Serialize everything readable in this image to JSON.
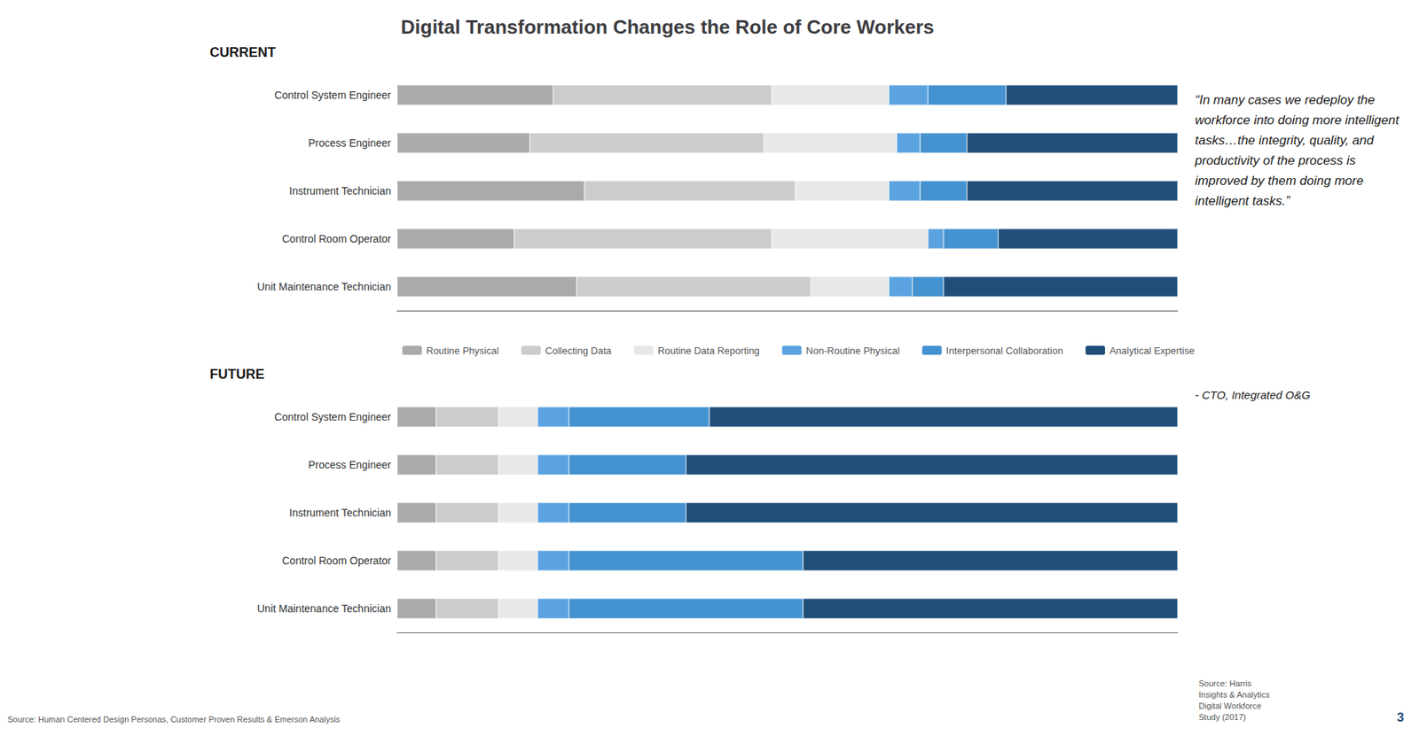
{
  "title": "Digital Transformation Changes the Role of Core Workers",
  "chart_data": [
    {
      "type": "bar",
      "title": "CURRENT",
      "orientation": "horizontal",
      "stacked": true,
      "grid": false,
      "tick_labels": "y",
      "legend": "bottom",
      "xlim": [
        0,
        100
      ],
      "categories": [
        "Control System Engineer",
        "Process Engineer",
        "Instrument Technician",
        "Control Room Operator",
        "Unit Maintenance Technician"
      ],
      "series": [
        {
          "name": "Routine Physical",
          "color": "#AAAAAA",
          "values": [
            20,
            17,
            24,
            15,
            23
          ]
        },
        {
          "name": "Collecting Data",
          "color": "#CCCCCC",
          "values": [
            28,
            30,
            27,
            33,
            30
          ]
        },
        {
          "name": "Routine Data Reporting",
          "color": "#E8E8E8",
          "values": [
            15,
            17,
            12,
            20,
            10
          ]
        },
        {
          "name": "Non-Routine Physical",
          "color": "#5BA3E0",
          "values": [
            5,
            3,
            4,
            2,
            3
          ]
        },
        {
          "name": "Interpersonal Collaboration",
          "color": "#4492D0",
          "values": [
            10,
            6,
            6,
            7,
            4
          ]
        },
        {
          "name": "Analytical Expertise",
          "color": "#1F4E79",
          "values": [
            22,
            27,
            27,
            23,
            30
          ]
        }
      ]
    },
    {
      "type": "bar",
      "title": "FUTURE",
      "orientation": "horizontal",
      "stacked": true,
      "grid": false,
      "tick_labels": "y",
      "xlim": [
        0,
        100
      ],
      "categories": [
        "Control System Engineer",
        "Process Engineer",
        "Instrument Technician",
        "Control Room Operator",
        "Unit Maintenance Technician"
      ],
      "series": [
        {
          "name": "Routine Physical",
          "color": "#AAAAAA",
          "values": [
            5,
            5,
            5,
            5,
            5
          ]
        },
        {
          "name": "Collecting Data",
          "color": "#CCCCCC",
          "values": [
            8,
            8,
            8,
            8,
            8
          ]
        },
        {
          "name": "Routine Data Reporting",
          "color": "#E8E8E8",
          "values": [
            5,
            5,
            5,
            5,
            5
          ]
        },
        {
          "name": "Non-Routine Physical",
          "color": "#5BA3E0",
          "values": [
            4,
            4,
            4,
            4,
            4
          ]
        },
        {
          "name": "Interpersonal Collaboration",
          "color": "#4492D0",
          "values": [
            18,
            15,
            15,
            30,
            30
          ]
        },
        {
          "name": "Analytical Expertise",
          "color": "#1F4E79",
          "values": [
            60,
            63,
            63,
            48,
            48
          ]
        }
      ]
    }
  ],
  "annotations": [
    "“In many cases we redeploy the workforce into doing more intelligent tasks…the integrity, quality, and productivity of the process is improved by them doing more intelligent tasks.”",
    "- CTO, Integrated O&G",
    "Source: Human Centered Design Personas, Customer Proven Results & Emerson Analysis",
    "Source: Harris\nInsights & Analytics\nDigital Workforce\nStudy (2017)",
    "3"
  ]
}
